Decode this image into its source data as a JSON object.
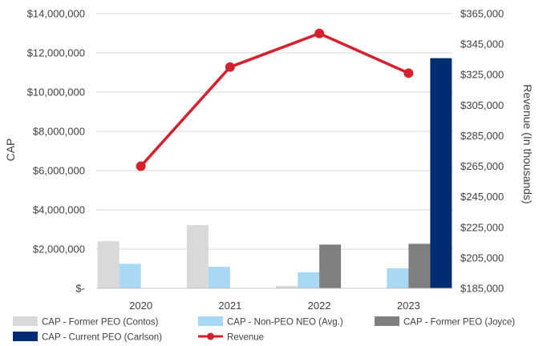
{
  "chart_data": {
    "type": "bar",
    "categories": [
      "2020",
      "2021",
      "2022",
      "2023"
    ],
    "series": [
      {
        "name": "CAP - Former PEO (Contos)",
        "axis": "left",
        "color": "#d9d9d9",
        "values": [
          2400000,
          3220000,
          120000,
          null
        ]
      },
      {
        "name": "CAP - Non-PEO NEO (Avg.)",
        "axis": "left",
        "color": "#a9d8f5",
        "values": [
          1250000,
          1100000,
          820000,
          1020000
        ]
      },
      {
        "name": "CAP - Former PEO (Joyce)",
        "axis": "left",
        "color": "#7f7f7f",
        "values": [
          null,
          null,
          2230000,
          2270000
        ]
      },
      {
        "name": "CAP - Current PEO (Carlson)",
        "axis": "left",
        "color": "#002d72",
        "values": [
          null,
          null,
          null,
          11730000
        ]
      },
      {
        "name": "Revenue",
        "type": "line",
        "axis": "right",
        "color": "#d3212d",
        "values": [
          265000,
          330000,
          352000,
          326000
        ]
      }
    ],
    "title": "",
    "xlabel": "",
    "ylabel": "CAP",
    "ylabel_right": "Revenue (In thousands)",
    "ylim": [
      0,
      14000000
    ],
    "ylim_right": [
      185000,
      365000
    ],
    "yticks": [
      "$-",
      "$2,000,000",
      "$4,000,000",
      "$6,000,000",
      "$8,000,000",
      "$10,000,000",
      "$12,000,000",
      "$14,000,000"
    ],
    "yticks_right": [
      "$185,000",
      "$205,000",
      "$225,000",
      "$245,000",
      "$265,000",
      "$285,000",
      "$305,000",
      "$325,000",
      "$345,000",
      "$365,000"
    ],
    "grid": true,
    "legend_position": "bottom"
  }
}
